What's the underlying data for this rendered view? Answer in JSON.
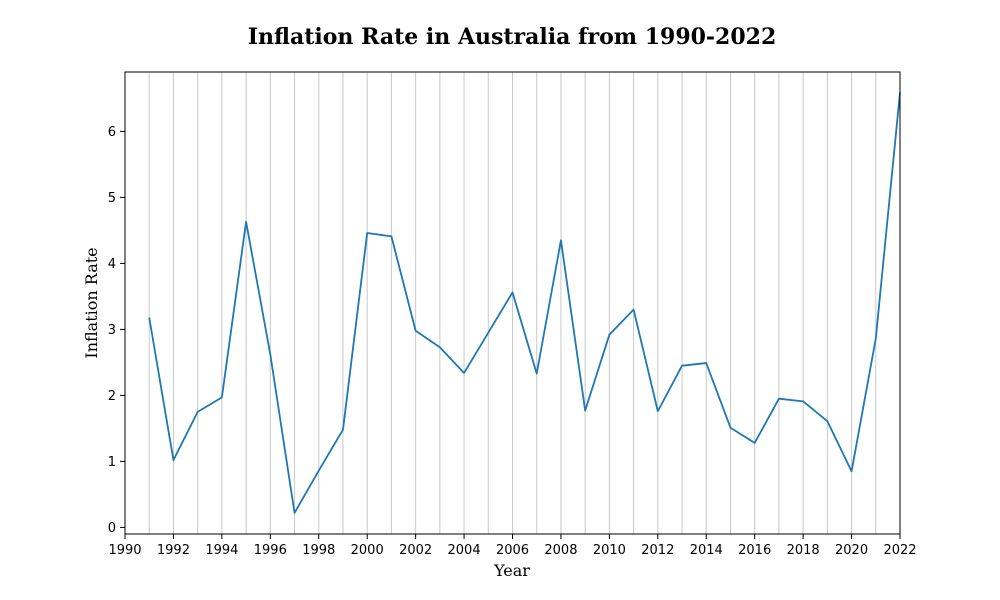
{
  "chart_data": {
    "type": "line",
    "title": "Inflation Rate in Australia from 1990-2022",
    "xlabel": "Year",
    "ylabel": "Inflation Rate",
    "xlim": [
      1990,
      2022
    ],
    "ylim": [
      -0.1,
      6.9
    ],
    "x_ticks": [
      1990,
      1992,
      1994,
      1996,
      1998,
      2000,
      2002,
      2004,
      2006,
      2008,
      2010,
      2012,
      2014,
      2016,
      2018,
      2020,
      2022
    ],
    "x_tick_labels": [
      "1990",
      "1992",
      "1994",
      "1996",
      "1998",
      "2000",
      "2002",
      "2004",
      "2006",
      "2008",
      "2010",
      "2012",
      "2014",
      "2016",
      "2018",
      "2020",
      "2022"
    ],
    "y_ticks": [
      0,
      1,
      2,
      3,
      4,
      5,
      6
    ],
    "y_tick_labels": [
      "0",
      "1",
      "2",
      "3",
      "4",
      "5",
      "6"
    ],
    "grid": "vertical",
    "color": "#1f77b4",
    "series": [
      {
        "x": [
          1991,
          1992,
          1993,
          1994,
          1995,
          1996,
          1997,
          1998,
          1999,
          2000,
          2001,
          2002,
          2003,
          2004,
          2005,
          2006,
          2007,
          2008,
          2009,
          2010,
          2011,
          2012,
          2013,
          2014,
          2015,
          2016,
          2017,
          2018,
          2019,
          2020,
          2021,
          2022
        ],
        "values": [
          3.18,
          1.02,
          1.75,
          1.97,
          4.63,
          2.62,
          0.22,
          0.86,
          1.48,
          4.46,
          4.41,
          2.98,
          2.73,
          2.34,
          2.95,
          3.56,
          2.33,
          4.35,
          1.77,
          2.92,
          3.3,
          1.76,
          2.45,
          2.49,
          1.51,
          1.28,
          1.95,
          1.91,
          1.61,
          0.85,
          2.86,
          6.59
        ]
      }
    ]
  }
}
